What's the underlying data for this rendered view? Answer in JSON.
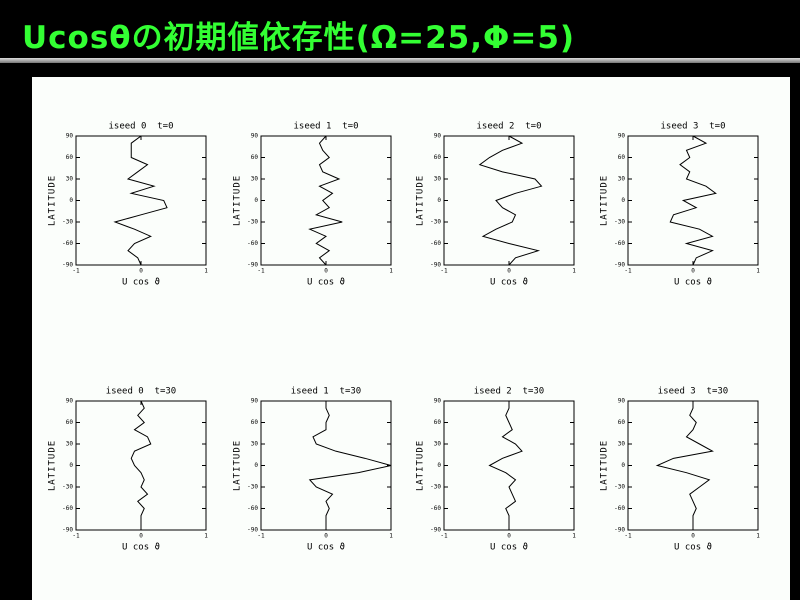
{
  "slide_title": "Ucosθの初期値依存性(Ω=25,Φ=5)",
  "chart_data": [
    {
      "type": "line",
      "title": "iseed 0  t=0",
      "x_label": "U cos ϑ",
      "y_label": "LATITUDE",
      "xlim": [
        -1,
        1
      ],
      "xticks": [
        -1,
        0,
        1
      ],
      "ylim": [
        -90,
        90
      ],
      "yticks": [
        -90,
        -60,
        -30,
        0,
        30,
        60,
        90
      ],
      "color": "#000000",
      "y": [
        -90,
        -80,
        -70,
        -60,
        -50,
        -40,
        -30,
        -20,
        -10,
        0,
        10,
        20,
        30,
        40,
        50,
        60,
        70,
        80,
        90
      ],
      "values": [
        0,
        -0.05,
        -0.2,
        -0.1,
        0.15,
        -0.1,
        -0.4,
        0,
        0.4,
        0.35,
        -0.15,
        0.2,
        -0.2,
        -0.05,
        0.1,
        -0.15,
        -0.15,
        -0.15,
        0
      ]
    },
    {
      "type": "line",
      "title": "iseed 1  t=0",
      "x_label": "U cos ϑ",
      "y_label": "LATITUDE",
      "xlim": [
        -1,
        1
      ],
      "xticks": [
        -1,
        0,
        1
      ],
      "ylim": [
        -90,
        90
      ],
      "yticks": [
        -90,
        -60,
        -30,
        0,
        30,
        60,
        90
      ],
      "color": "#000000",
      "y": [
        -90,
        -80,
        -70,
        -60,
        -50,
        -40,
        -30,
        -20,
        -10,
        0,
        10,
        20,
        30,
        40,
        50,
        60,
        70,
        80,
        90
      ],
      "values": [
        0,
        -0.1,
        0.05,
        -0.15,
        0,
        -0.25,
        0.25,
        -0.15,
        0.05,
        -0.05,
        0.1,
        -0.1,
        0.2,
        -0.05,
        -0.1,
        0.05,
        -0.05,
        -0.1,
        0
      ]
    },
    {
      "type": "line",
      "title": "iseed 2  t=0",
      "x_label": "U cos ϑ",
      "y_label": "LATITUDE",
      "xlim": [
        -1,
        1
      ],
      "xticks": [
        -1,
        0,
        1
      ],
      "ylim": [
        -90,
        90
      ],
      "yticks": [
        -90,
        -60,
        -30,
        0,
        30,
        60,
        90
      ],
      "color": "#000000",
      "y": [
        -90,
        -80,
        -70,
        -60,
        -50,
        -40,
        -30,
        -20,
        -10,
        0,
        10,
        20,
        30,
        40,
        50,
        60,
        70,
        80,
        90
      ],
      "values": [
        0,
        0.1,
        0.45,
        0,
        -0.4,
        -0.2,
        0.05,
        0.1,
        -0.1,
        -0.2,
        0.1,
        0.5,
        0.4,
        -0.1,
        -0.45,
        -0.3,
        -0.1,
        0.2,
        0
      ]
    },
    {
      "type": "line",
      "title": "iseed 3  t=0",
      "x_label": "U cos ϑ",
      "y_label": "LATITUDE",
      "xlim": [
        -1,
        1
      ],
      "xticks": [
        -1,
        0,
        1
      ],
      "ylim": [
        -90,
        90
      ],
      "yticks": [
        -90,
        -60,
        -30,
        0,
        30,
        60,
        90
      ],
      "color": "#000000",
      "y": [
        -90,
        -80,
        -70,
        -60,
        -50,
        -40,
        -30,
        -20,
        -10,
        0,
        10,
        20,
        30,
        40,
        50,
        60,
        70,
        80,
        90
      ],
      "values": [
        0,
        0.05,
        0.3,
        -0.1,
        0.3,
        0.1,
        -0.35,
        -0.3,
        0.05,
        -0.15,
        0.35,
        0.2,
        -0.1,
        -0.05,
        -0.2,
        -0.05,
        -0.1,
        0.2,
        0
      ]
    },
    {
      "type": "line",
      "title": "iseed 0  t=30",
      "x_label": "U cos ϑ",
      "y_label": "LATITUDE",
      "xlim": [
        -1,
        1
      ],
      "xticks": [
        -1,
        0,
        1
      ],
      "ylim": [
        -90,
        90
      ],
      "yticks": [
        -90,
        -60,
        -30,
        0,
        30,
        60,
        90
      ],
      "color": "#000000",
      "y": [
        -90,
        -80,
        -70,
        -60,
        -50,
        -40,
        -30,
        -20,
        -10,
        0,
        10,
        20,
        30,
        40,
        50,
        60,
        70,
        80,
        90
      ],
      "values": [
        0,
        0,
        0,
        0.05,
        -0.05,
        0.1,
        0,
        0.05,
        0,
        -0.1,
        -0.15,
        -0.1,
        0.15,
        0.1,
        -0.1,
        0.05,
        -0.05,
        0.05,
        0
      ]
    },
    {
      "type": "line",
      "title": "iseed 1  t=30",
      "x_label": "U cos ϑ",
      "y_label": "LATITUDE",
      "xlim": [
        -1,
        1
      ],
      "xticks": [
        -1,
        0,
        1
      ],
      "ylim": [
        -90,
        90
      ],
      "yticks": [
        -90,
        -60,
        -30,
        0,
        30,
        60,
        90
      ],
      "color": "#000000",
      "y": [
        -90,
        -80,
        -70,
        -60,
        -50,
        -40,
        -30,
        -20,
        -10,
        0,
        10,
        20,
        30,
        40,
        50,
        60,
        70,
        80,
        90
      ],
      "values": [
        0,
        0,
        0,
        0.05,
        0,
        0.1,
        -0.15,
        -0.25,
        0.5,
        1.0,
        0.6,
        0.15,
        -0.15,
        -0.2,
        0,
        0,
        0.05,
        0,
        0
      ]
    },
    {
      "type": "line",
      "title": "iseed 2  t=30",
      "x_label": "U cos ϑ",
      "y_label": "LATITUDE",
      "xlim": [
        -1,
        1
      ],
      "xticks": [
        -1,
        0,
        1
      ],
      "ylim": [
        -90,
        90
      ],
      "yticks": [
        -90,
        -60,
        -30,
        0,
        30,
        60,
        90
      ],
      "color": "#000000",
      "y": [
        -90,
        -80,
        -70,
        -60,
        -50,
        -40,
        -30,
        -20,
        -10,
        0,
        10,
        20,
        30,
        40,
        50,
        60,
        70,
        80,
        90
      ],
      "values": [
        0,
        0,
        0,
        -0.05,
        0.1,
        0.05,
        0,
        0.1,
        -0.05,
        -0.3,
        -0.1,
        0.2,
        0.1,
        -0.1,
        0.05,
        0,
        -0.05,
        0,
        0
      ]
    },
    {
      "type": "line",
      "title": "iseed 3  t=30",
      "x_label": "U cos ϑ",
      "y_label": "LATITUDE",
      "xlim": [
        -1,
        1
      ],
      "xticks": [
        -1,
        0,
        1
      ],
      "ylim": [
        -90,
        90
      ],
      "yticks": [
        -90,
        -60,
        -30,
        0,
        30,
        60,
        90
      ],
      "color": "#000000",
      "y": [
        -90,
        -80,
        -70,
        -60,
        -50,
        -40,
        -30,
        -20,
        -10,
        0,
        10,
        20,
        30,
        40,
        50,
        60,
        70,
        80,
        90
      ],
      "values": [
        0,
        0,
        0,
        0.05,
        0,
        -0.05,
        0.1,
        0.25,
        -0.1,
        -0.55,
        -0.3,
        0.3,
        0.1,
        -0.1,
        0,
        0.05,
        -0.05,
        0,
        0
      ]
    }
  ]
}
